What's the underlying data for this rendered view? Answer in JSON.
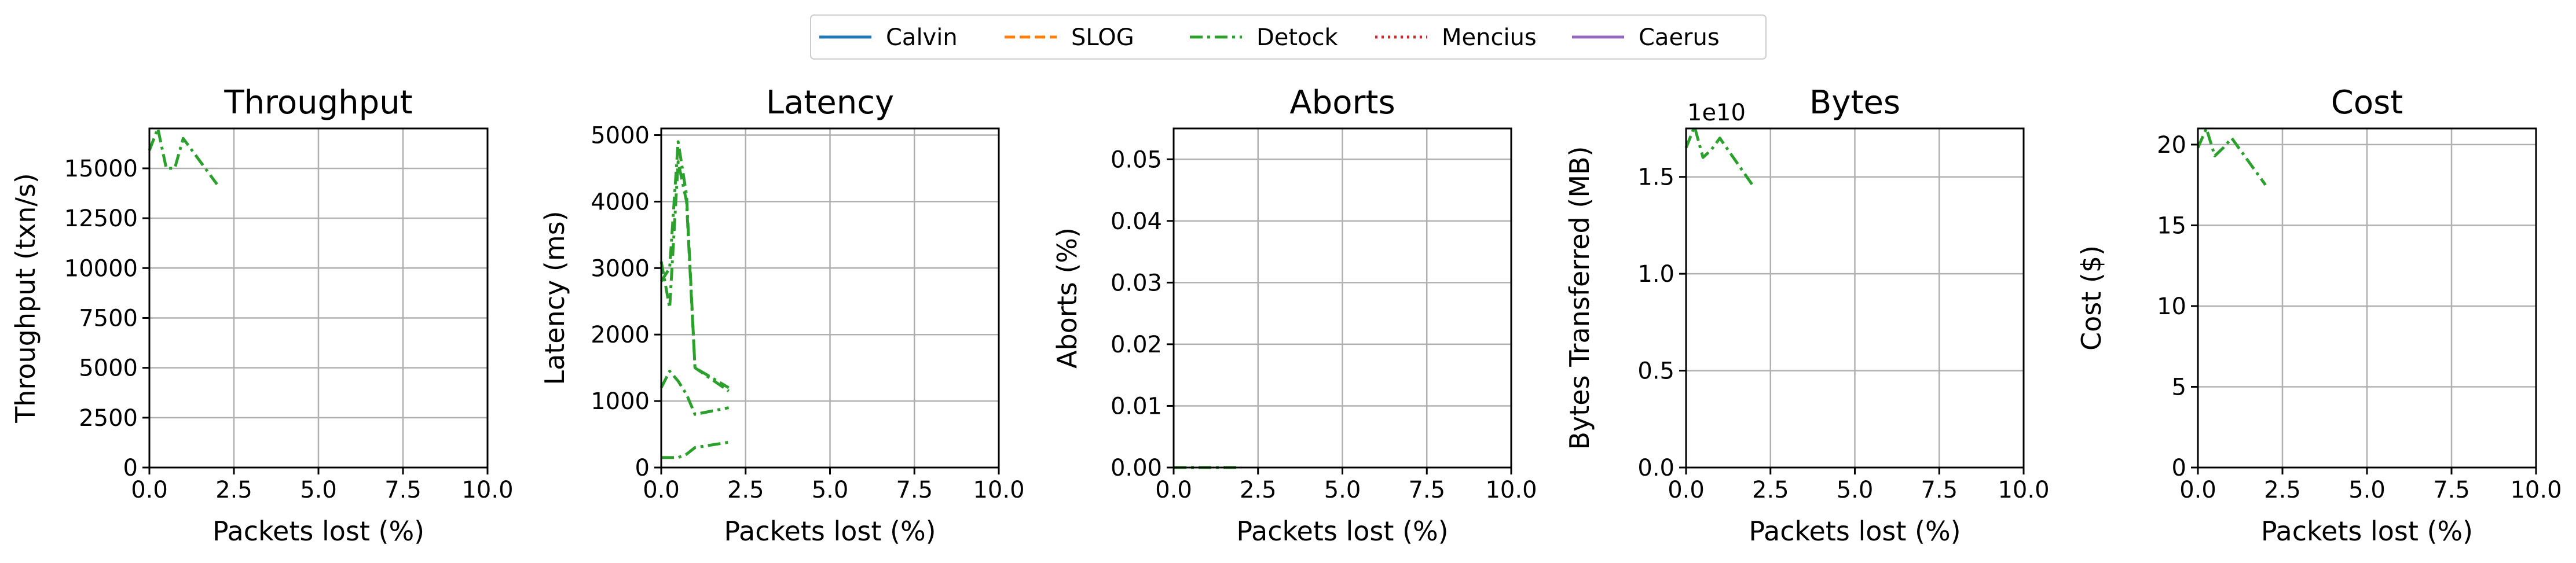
{
  "legend": {
    "entries": [
      {
        "name": "Calvin",
        "color": "#1f77b4",
        "dash": "solid"
      },
      {
        "name": "SLOG",
        "color": "#ff7f0e",
        "dash": "dashed"
      },
      {
        "name": "Detock",
        "color": "#2ca02c",
        "dash": "dashdot"
      },
      {
        "name": "Mencius",
        "color": "#d62728",
        "dash": "dotted"
      },
      {
        "name": "Caerus",
        "color": "#9467bd",
        "dash": "solid"
      }
    ]
  },
  "chart_data": [
    {
      "type": "line",
      "title": "Throughput",
      "xlabel": "Packets lost (%)",
      "ylabel": "Throughput (txn/s)",
      "xlim": [
        0,
        10
      ],
      "ylim": [
        0,
        17000
      ],
      "xticks": [
        "0.0",
        "2.5",
        "5.0",
        "7.5",
        "10.0"
      ],
      "yticks": [
        "0",
        "2500",
        "5000",
        "7500",
        "10000",
        "12500",
        "15000"
      ],
      "ytick_values": [
        0,
        2500,
        5000,
        7500,
        10000,
        12500,
        15000
      ],
      "grid": true,
      "series": [
        {
          "name": "Detock",
          "x": [
            0,
            0.25,
            0.5,
            0.75,
            1.0,
            2.0
          ],
          "y": [
            15900,
            17000,
            15000,
            15000,
            16500,
            14200
          ]
        }
      ]
    },
    {
      "type": "line",
      "title": "Latency",
      "xlabel": "Packets lost (%)",
      "ylabel": "Latency (ms)",
      "xlim": [
        0,
        10
      ],
      "ylim": [
        0,
        5100
      ],
      "xticks": [
        "0.0",
        "2.5",
        "5.0",
        "7.5",
        "10.0"
      ],
      "yticks": [
        "0",
        "1000",
        "2000",
        "3000",
        "4000",
        "5000"
      ],
      "ytick_values": [
        0,
        1000,
        2000,
        3000,
        4000,
        5000
      ],
      "grid": true,
      "series": [
        {
          "name": "Detock",
          "x": [
            0,
            0.25,
            0.5,
            0.75,
            1.0,
            2.0
          ],
          "y": [
            2800,
            3000,
            4900,
            4100,
            1500,
            1200
          ]
        },
        {
          "name": "Detock",
          "x": [
            0,
            0.25,
            0.5,
            0.75,
            1.0,
            2.0
          ],
          "y": [
            3100,
            2400,
            4600,
            4000,
            1500,
            1150
          ]
        },
        {
          "name": "Detock",
          "x": [
            0,
            0.25,
            0.5,
            0.75,
            1.0,
            2.0
          ],
          "y": [
            1200,
            1450,
            1300,
            1100,
            800,
            900
          ]
        },
        {
          "name": "Detock",
          "x": [
            0,
            0.25,
            0.5,
            0.75,
            1.0,
            2.0
          ],
          "y": [
            150,
            150,
            150,
            200,
            300,
            380
          ]
        }
      ]
    },
    {
      "type": "line",
      "title": "Aborts",
      "xlabel": "Packets lost (%)",
      "ylabel": "Aborts (%)",
      "xlim": [
        0,
        10
      ],
      "ylim": [
        0,
        0.055
      ],
      "xticks": [
        "0.0",
        "2.5",
        "5.0",
        "7.5",
        "10.0"
      ],
      "yticks": [
        "0.00",
        "0.01",
        "0.02",
        "0.03",
        "0.04",
        "0.05"
      ],
      "ytick_values": [
        0,
        0.01,
        0.02,
        0.03,
        0.04,
        0.05
      ],
      "grid": true,
      "series": [
        {
          "name": "Detock",
          "x": [
            0,
            0.25,
            0.5,
            0.75,
            1.0,
            2.0
          ],
          "y": [
            0,
            0,
            0,
            0,
            0,
            0
          ]
        }
      ]
    },
    {
      "type": "line",
      "title": "Bytes",
      "xlabel": "Packets lost (%)",
      "ylabel": "Bytes Transferred (MB)",
      "offset_text": "1e10",
      "xlim": [
        0,
        10
      ],
      "ylim": [
        0,
        1.75
      ],
      "xticks": [
        "0.0",
        "2.5",
        "5.0",
        "7.5",
        "10.0"
      ],
      "yticks": [
        "0.0",
        "0.5",
        "1.0",
        "1.5"
      ],
      "ytick_values": [
        0,
        0.5,
        1.0,
        1.5
      ],
      "grid": true,
      "series": [
        {
          "name": "Detock",
          "x": [
            0,
            0.25,
            0.5,
            0.75,
            1.0,
            2.0
          ],
          "y": [
            1.65,
            1.76,
            1.6,
            1.64,
            1.7,
            1.45
          ]
        }
      ]
    },
    {
      "type": "line",
      "title": "Cost",
      "xlabel": "Packets lost (%)",
      "ylabel": "Cost ($)",
      "xlim": [
        0,
        10
      ],
      "ylim": [
        0,
        21
      ],
      "xticks": [
        "0.0",
        "2.5",
        "5.0",
        "7.5",
        "10.0"
      ],
      "yticks": [
        "0",
        "5",
        "10",
        "15",
        "20"
      ],
      "ytick_values": [
        0,
        5,
        10,
        15,
        20
      ],
      "grid": true,
      "series": [
        {
          "name": "Detock",
          "x": [
            0,
            0.25,
            0.5,
            0.75,
            1.0,
            2.0
          ],
          "y": [
            19.8,
            21.0,
            19.3,
            19.8,
            20.4,
            17.5
          ]
        }
      ]
    }
  ]
}
